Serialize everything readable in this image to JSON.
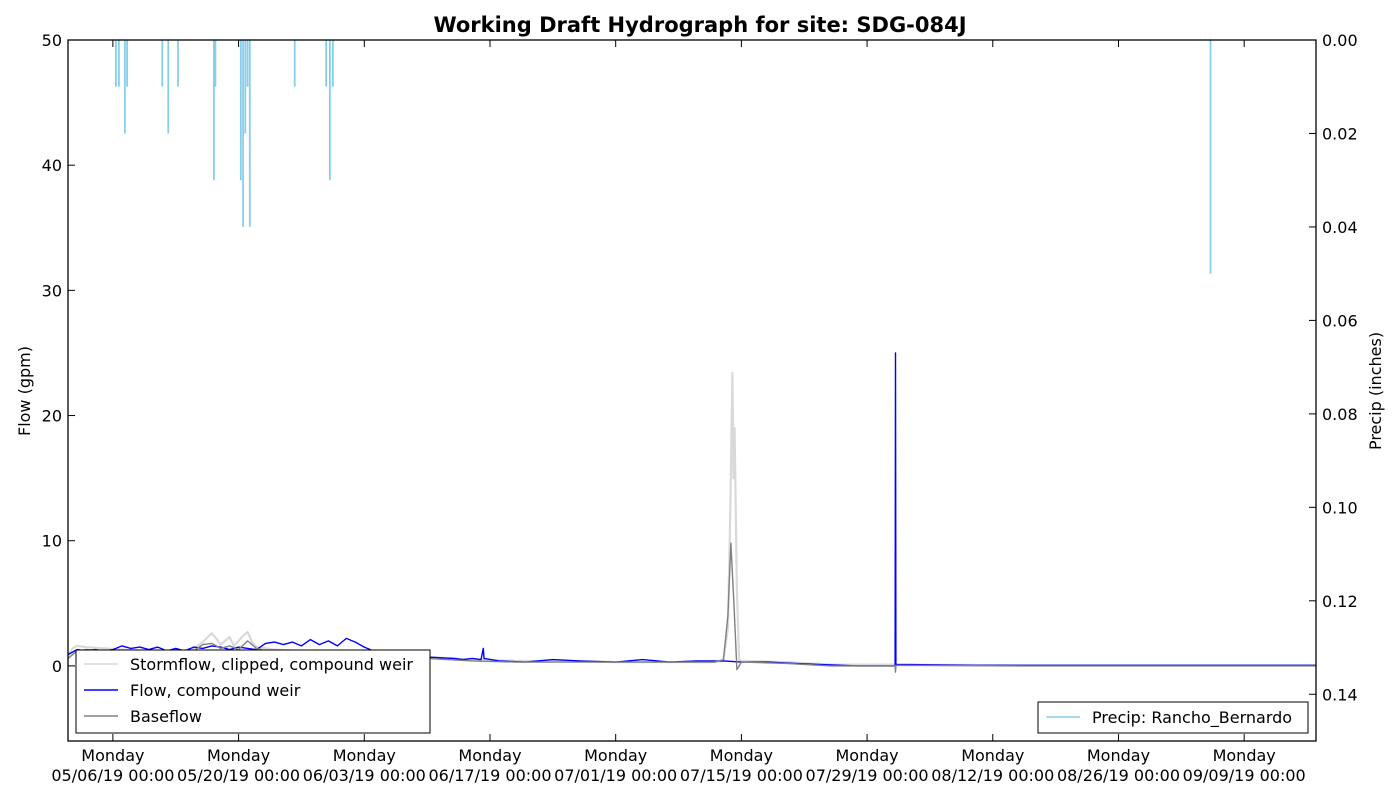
{
  "chart_data": {
    "type": "line",
    "title": "Working Draft Hydrograph for site: SDG-084J",
    "ylabel": "Flow (gpm)",
    "y2label": "Precip (inches)",
    "xlabel": "",
    "ylim": [
      -6,
      50
    ],
    "y2lim": [
      0.15,
      0.0
    ],
    "y2_inverted": true,
    "xlim": [
      "2019-05-01",
      "2019-09-17"
    ],
    "yticks": [
      0,
      10,
      20,
      30,
      40,
      50
    ],
    "y2ticks": [
      "0.00",
      "0.02",
      "0.04",
      "0.06",
      "0.08",
      "0.10",
      "0.12",
      "0.14"
    ],
    "xticks": [
      {
        "date": "2019-05-06",
        "top": "Monday",
        "bottom": "05/06/19 00:00"
      },
      {
        "date": "2019-05-20",
        "top": "Monday",
        "bottom": "05/20/19 00:00"
      },
      {
        "date": "2019-06-03",
        "top": "Monday",
        "bottom": "06/03/19 00:00"
      },
      {
        "date": "2019-06-17",
        "top": "Monday",
        "bottom": "06/17/19 00:00"
      },
      {
        "date": "2019-07-01",
        "top": "Monday",
        "bottom": "07/01/19 00:00"
      },
      {
        "date": "2019-07-15",
        "top": "Monday",
        "bottom": "07/15/19 00:00"
      },
      {
        "date": "2019-07-29",
        "top": "Monday",
        "bottom": "07/29/19 00:00"
      },
      {
        "date": "2019-08-12",
        "top": "Monday",
        "bottom": "08/12/19 00:00"
      },
      {
        "date": "2019-08-26",
        "top": "Monday",
        "bottom": "08/26/19 00:00"
      },
      {
        "date": "2019-09-09",
        "top": "Monday",
        "bottom": "09/09/19 00:00"
      }
    ],
    "grid": false,
    "legend_flow_placement": "lower-left",
    "legend_precip_placement": "lower-right",
    "series": [
      {
        "name": "Stormflow, clipped, compound weir",
        "color": "#d9d9d9",
        "axis": "left",
        "points": [
          [
            "2019-05-01",
            0.8
          ],
          [
            "2019-05-01 12:00",
            1.4
          ],
          [
            "2019-05-02",
            1.6
          ],
          [
            "2019-05-03",
            1.5
          ],
          [
            "2019-05-05",
            1.4
          ],
          [
            "2019-05-07",
            1.3
          ],
          [
            "2019-05-10",
            1.2
          ],
          [
            "2019-05-13",
            1.1
          ],
          [
            "2019-05-15",
            1.4
          ],
          [
            "2019-05-16",
            1.9
          ],
          [
            "2019-05-17",
            2.6
          ],
          [
            "2019-05-17 12:00",
            2.2
          ],
          [
            "2019-05-18",
            1.7
          ],
          [
            "2019-05-19",
            2.3
          ],
          [
            "2019-05-19 12:00",
            1.6
          ],
          [
            "2019-05-20",
            2.0
          ],
          [
            "2019-05-20 12:00",
            2.4
          ],
          [
            "2019-05-21",
            2.7
          ],
          [
            "2019-05-21 12:00",
            1.9
          ],
          [
            "2019-05-22",
            1.5
          ],
          [
            "2019-05-23",
            1.4
          ],
          [
            "2019-05-24",
            1.3
          ],
          [
            "2019-05-27",
            1.2
          ],
          [
            "2019-06-01",
            1.0
          ],
          [
            "2019-06-05",
            0.9
          ],
          [
            "2019-06-10",
            0.7
          ],
          [
            "2019-06-15",
            0.5
          ],
          [
            "2019-06-20",
            0.4
          ],
          [
            "2019-06-25",
            0.4
          ],
          [
            "2019-07-01",
            0.3
          ],
          [
            "2019-07-08",
            0.3
          ],
          [
            "2019-07-12",
            0.3
          ],
          [
            "2019-07-13",
            0.4
          ],
          [
            "2019-07-13 12:00",
            3.0
          ],
          [
            "2019-07-13 18:00",
            12.0
          ],
          [
            "2019-07-14",
            23.4
          ],
          [
            "2019-07-14 03:00",
            15.0
          ],
          [
            "2019-07-14 06:00",
            19.0
          ],
          [
            "2019-07-14 12:00",
            6.0
          ],
          [
            "2019-07-14 18:00",
            0.5
          ],
          [
            "2019-07-15",
            0.4
          ],
          [
            "2019-07-20",
            0.3
          ],
          [
            "2019-07-25",
            0.1
          ],
          [
            "2019-08-01",
            0.1
          ],
          [
            "2019-08-15",
            0.05
          ],
          [
            "2019-09-01",
            0.05
          ],
          [
            "2019-09-17",
            0.05
          ]
        ]
      },
      {
        "name": "Flow, compound weir",
        "color": "#0000ff",
        "axis": "left",
        "points": [
          [
            "2019-05-01",
            0.9
          ],
          [
            "2019-05-02",
            1.3
          ],
          [
            "2019-05-03",
            1.2
          ],
          [
            "2019-05-04",
            1.3
          ],
          [
            "2019-05-05",
            1.2
          ],
          [
            "2019-05-06",
            1.3
          ],
          [
            "2019-05-07",
            1.6
          ],
          [
            "2019-05-08",
            1.4
          ],
          [
            "2019-05-09",
            1.5
          ],
          [
            "2019-05-10",
            1.3
          ],
          [
            "2019-05-11",
            1.5
          ],
          [
            "2019-05-12",
            1.2
          ],
          [
            "2019-05-13",
            1.4
          ],
          [
            "2019-05-14",
            1.2
          ],
          [
            "2019-05-15",
            1.5
          ],
          [
            "2019-05-16",
            1.4
          ],
          [
            "2019-05-17",
            1.6
          ],
          [
            "2019-05-18",
            1.5
          ],
          [
            "2019-05-19",
            1.3
          ],
          [
            "2019-05-20",
            1.5
          ],
          [
            "2019-05-21",
            1.4
          ],
          [
            "2019-05-22",
            1.3
          ],
          [
            "2019-05-23",
            1.8
          ],
          [
            "2019-05-24",
            1.9
          ],
          [
            "2019-05-25",
            1.7
          ],
          [
            "2019-05-26",
            1.9
          ],
          [
            "2019-05-27",
            1.6
          ],
          [
            "2019-05-28",
            2.1
          ],
          [
            "2019-05-29",
            1.7
          ],
          [
            "2019-05-30",
            2.0
          ],
          [
            "2019-05-31",
            1.6
          ],
          [
            "2019-06-01",
            2.2
          ],
          [
            "2019-06-02",
            1.9
          ],
          [
            "2019-06-03",
            1.5
          ],
          [
            "2019-06-04",
            1.2
          ],
          [
            "2019-06-06",
            0.9
          ],
          [
            "2019-06-10",
            0.7
          ],
          [
            "2019-06-13",
            0.6
          ],
          [
            "2019-06-14",
            0.5
          ],
          [
            "2019-06-15",
            0.6
          ],
          [
            "2019-06-16",
            0.5
          ],
          [
            "2019-06-16 06:00",
            1.4
          ],
          [
            "2019-06-16 08:00",
            0.6
          ],
          [
            "2019-06-18",
            0.4
          ],
          [
            "2019-06-21",
            0.3
          ],
          [
            "2019-06-24",
            0.5
          ],
          [
            "2019-06-27",
            0.4
          ],
          [
            "2019-07-01",
            0.3
          ],
          [
            "2019-07-04",
            0.5
          ],
          [
            "2019-07-07",
            0.3
          ],
          [
            "2019-07-10",
            0.4
          ],
          [
            "2019-07-13",
            0.4
          ],
          [
            "2019-07-15",
            0.3
          ],
          [
            "2019-07-18",
            0.3
          ],
          [
            "2019-07-21",
            0.2
          ],
          [
            "2019-07-24",
            0.1
          ],
          [
            "2019-07-28",
            0.0
          ],
          [
            "2019-07-31",
            0.0
          ],
          [
            "2019-08-01 03:00",
            0.0
          ],
          [
            "2019-08-01 04:00",
            25.0
          ],
          [
            "2019-08-01 05:00",
            0.1
          ],
          [
            "2019-08-03",
            0.1
          ],
          [
            "2019-08-10",
            0.05
          ],
          [
            "2019-08-20",
            0.05
          ],
          [
            "2019-09-01",
            0.05
          ],
          [
            "2019-09-17",
            0.05
          ]
        ]
      },
      {
        "name": "Baseflow",
        "color": "#808080",
        "axis": "left",
        "points": [
          [
            "2019-05-01",
            0.6
          ],
          [
            "2019-05-02",
            1.2
          ],
          [
            "2019-05-03",
            1.3
          ],
          [
            "2019-05-06",
            1.2
          ],
          [
            "2019-05-10",
            1.1
          ],
          [
            "2019-05-14",
            1.0
          ],
          [
            "2019-05-15",
            1.2
          ],
          [
            "2019-05-16",
            1.7
          ],
          [
            "2019-05-17",
            1.8
          ],
          [
            "2019-05-18",
            1.4
          ],
          [
            "2019-05-19",
            1.6
          ],
          [
            "2019-05-20",
            1.3
          ],
          [
            "2019-05-21",
            2.0
          ],
          [
            "2019-05-22",
            1.4
          ],
          [
            "2019-05-23",
            1.2
          ],
          [
            "2019-05-27",
            1.0
          ],
          [
            "2019-06-01",
            0.9
          ],
          [
            "2019-06-05",
            0.7
          ],
          [
            "2019-06-10",
            0.6
          ],
          [
            "2019-06-15",
            0.4
          ],
          [
            "2019-06-20",
            0.3
          ],
          [
            "2019-06-25",
            0.3
          ],
          [
            "2019-07-01",
            0.3
          ],
          [
            "2019-07-08",
            0.3
          ],
          [
            "2019-07-12",
            0.3
          ],
          [
            "2019-07-13",
            0.5
          ],
          [
            "2019-07-13 12:00",
            4.0
          ],
          [
            "2019-07-13 20:00",
            9.8
          ],
          [
            "2019-07-14 04:00",
            5.0
          ],
          [
            "2019-07-14 12:00",
            -0.3
          ],
          [
            "2019-07-15",
            0.3
          ],
          [
            "2019-07-20",
            0.2
          ],
          [
            "2019-07-25",
            0.0
          ],
          [
            "2019-08-01 03:00",
            0.0
          ],
          [
            "2019-08-01 04:00",
            -0.5
          ],
          [
            "2019-08-01 05:00",
            0.05
          ],
          [
            "2019-08-15",
            0.0
          ],
          [
            "2019-09-17",
            0.0
          ]
        ]
      },
      {
        "name": "Precip: Rancho_Bernardo",
        "color": "#87ceeb",
        "axis": "right",
        "bars": [
          [
            "2019-05-06 08:00",
            0.01
          ],
          [
            "2019-05-06 16:00",
            0.01
          ],
          [
            "2019-05-07 08:00",
            0.02
          ],
          [
            "2019-05-07 14:00",
            0.01
          ],
          [
            "2019-05-11 12:00",
            0.01
          ],
          [
            "2019-05-12 04:00",
            0.02
          ],
          [
            "2019-05-13 06:00",
            0.01
          ],
          [
            "2019-05-17 06:00",
            0.03
          ],
          [
            "2019-05-17 10:00",
            0.01
          ],
          [
            "2019-05-20 06:00",
            0.03
          ],
          [
            "2019-05-20 12:00",
            0.04
          ],
          [
            "2019-05-20 18:00",
            0.02
          ],
          [
            "2019-05-21 00:00",
            0.01
          ],
          [
            "2019-05-21 06:00",
            0.04
          ],
          [
            "2019-05-26 06:00",
            0.01
          ],
          [
            "2019-05-29 18:00",
            0.01
          ],
          [
            "2019-05-30 04:00",
            0.03
          ],
          [
            "2019-05-30 12:00",
            0.01
          ],
          [
            "2019-09-05 06:00",
            0.05
          ]
        ]
      }
    ]
  }
}
